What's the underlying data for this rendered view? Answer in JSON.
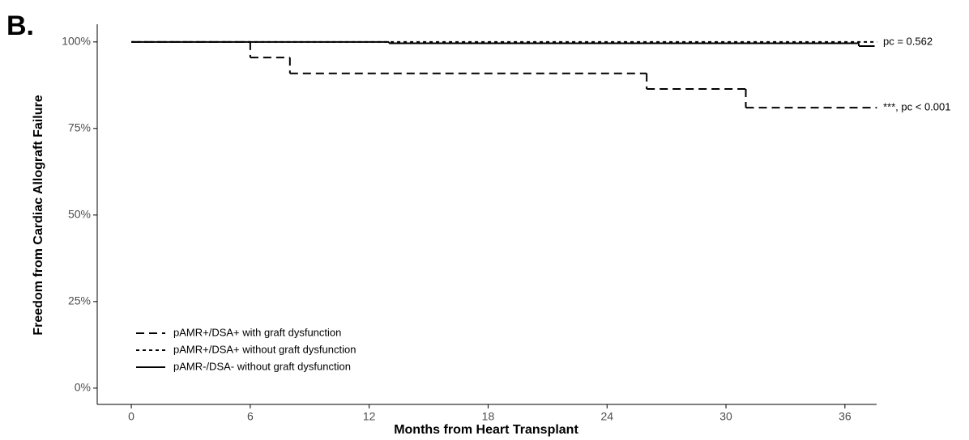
{
  "chart_data": {
    "type": "step",
    "panel_label": "B.",
    "xlabel": "Months from Heart Transplant",
    "ylabel": "Freedom from Cardiac Allograft Failure",
    "xlim": [
      -1.72,
      37.6
    ],
    "xticks": [
      0,
      6,
      12,
      18,
      24,
      30,
      36
    ],
    "ylim": [
      -4.7,
      105.1
    ],
    "yticks": [
      {
        "value": 0,
        "label": "0%"
      },
      {
        "value": 25,
        "label": "25%"
      },
      {
        "value": 50,
        "label": "50%"
      },
      {
        "value": 75,
        "label": "75%"
      },
      {
        "value": 100,
        "label": "100%"
      }
    ],
    "grid": false,
    "legend": "lower left",
    "series": [
      {
        "name": "pAMR+/DSA+ with graft dysfunction",
        "color": "#000000",
        "linestyle": "dashed",
        "x": [
          0,
          6,
          8,
          26,
          31,
          37.6
        ],
        "values": [
          100,
          95.5,
          90.9,
          86.4,
          81.0,
          81.0
        ],
        "annotation": "***, pc < 0.001"
      },
      {
        "name": "pAMR+/DSA+ without graft dysfunction",
        "color": "#000000",
        "linestyle": "dotted",
        "x": [
          0,
          37.6
        ],
        "values": [
          100,
          100
        ],
        "annotation": "pc = 0.562"
      },
      {
        "name": "pAMR-/DSA-   without graft dysfunction",
        "color": "#000000",
        "linestyle": "solid",
        "x": [
          0,
          13,
          36.7,
          37.5
        ],
        "values": [
          100,
          99.6,
          98.8,
          98.8
        ]
      }
    ]
  }
}
